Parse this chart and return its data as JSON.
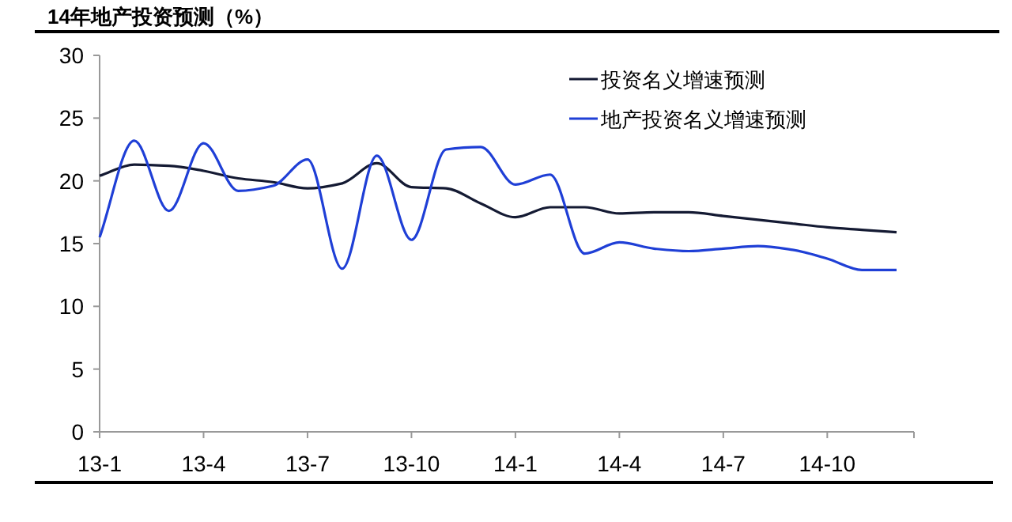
{
  "chart_data": {
    "type": "line",
    "title": "14年地产投资预测（%）",
    "categories": [
      "13-1",
      null,
      null,
      "13-4",
      null,
      null,
      "13-7",
      null,
      null,
      "13-10",
      null,
      null,
      "14-1",
      null,
      null,
      "14-4",
      null,
      null,
      "14-7",
      null,
      null,
      "14-10",
      null,
      null
    ],
    "series": [
      {
        "name": "投资名义增速预测",
        "color": "#141a33",
        "values": [
          20.4,
          21.3,
          21.2,
          20.8,
          20.2,
          19.9,
          19.4,
          19.8,
          21.4,
          19.5,
          19.4,
          18.2,
          17.1,
          17.9,
          17.9,
          17.4,
          17.5,
          17.5,
          17.2,
          16.9,
          16.6,
          16.3,
          16.1,
          15.9
        ]
      },
      {
        "name": "地产投资名义增速预测",
        "color": "#1f3fd6",
        "values": [
          15.5,
          23.2,
          17.6,
          23.0,
          19.2,
          19.6,
          21.7,
          13.0,
          22.0,
          15.3,
          22.5,
          22.7,
          19.7,
          20.5,
          14.2,
          15.1,
          14.6,
          14.4,
          14.6,
          14.8,
          14.5,
          13.8,
          12.9,
          12.9
        ]
      }
    ],
    "ylim": [
      0,
      30
    ],
    "yticks": [
      0,
      5,
      10,
      15,
      20,
      25,
      30
    ],
    "grid": false,
    "legend": "top right",
    "marker": "none",
    "line_style": "solid"
  }
}
